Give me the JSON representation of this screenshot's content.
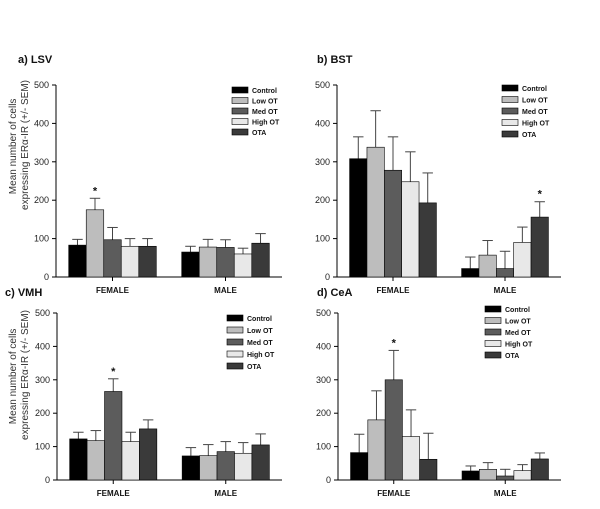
{
  "figure": {
    "ylabel_line1": "Mean number of cells",
    "ylabel_line2": "expressing ERα-IR (+/- SEM)"
  },
  "colors": {
    "Control": "#000000",
    "Low OT": "#bdbdbd",
    "Med OT": "#5c5c5c",
    "High OT": "#e8e8e8",
    "OTA": "#3a3a3a"
  },
  "chart_data": [
    {
      "type": "bar",
      "title": "a) LSV",
      "categories": [
        "FEMALE",
        "MALE"
      ],
      "ylim": [
        0,
        500
      ],
      "yticks": [
        0,
        100,
        200,
        300,
        400,
        500
      ],
      "legend": "top-right",
      "series": [
        {
          "name": "Control",
          "values": [
            83,
            65
          ],
          "errors": [
            15,
            15
          ]
        },
        {
          "name": "Low OT",
          "values": [
            175,
            78
          ],
          "errors": [
            30,
            20
          ]
        },
        {
          "name": "Med OT",
          "values": [
            97,
            77
          ],
          "errors": [
            32,
            20
          ]
        },
        {
          "name": "High OT",
          "values": [
            80,
            60
          ],
          "errors": [
            20,
            15
          ]
        },
        {
          "name": "OTA",
          "values": [
            80,
            88
          ],
          "errors": [
            20,
            25
          ]
        }
      ],
      "annotations": [
        {
          "category": "FEMALE",
          "series": "Low OT",
          "text": "*"
        }
      ]
    },
    {
      "type": "bar",
      "title": "b) BST",
      "categories": [
        "FEMALE",
        "MALE"
      ],
      "ylim": [
        0,
        500
      ],
      "yticks": [
        0,
        100,
        200,
        300,
        400,
        500
      ],
      "legend": "top-right",
      "series": [
        {
          "name": "Control",
          "values": [
            308,
            22
          ],
          "errors": [
            57,
            30
          ]
        },
        {
          "name": "Low OT",
          "values": [
            338,
            57
          ],
          "errors": [
            95,
            38
          ]
        },
        {
          "name": "Med OT",
          "values": [
            278,
            22
          ],
          "errors": [
            87,
            45
          ]
        },
        {
          "name": "High OT",
          "values": [
            248,
            90
          ],
          "errors": [
            78,
            40
          ]
        },
        {
          "name": "OTA",
          "values": [
            193,
            156
          ],
          "errors": [
            78,
            40
          ]
        }
      ],
      "annotations": [
        {
          "category": "MALE",
          "series": "OTA",
          "text": "*"
        }
      ]
    },
    {
      "type": "bar",
      "title": "c) VMH",
      "categories": [
        "FEMALE",
        "MALE"
      ],
      "ylim": [
        0,
        500
      ],
      "yticks": [
        0,
        100,
        200,
        300,
        400,
        500
      ],
      "legend": "top-right",
      "series": [
        {
          "name": "Control",
          "values": [
            123,
            72
          ],
          "errors": [
            20,
            25
          ]
        },
        {
          "name": "Low OT",
          "values": [
            118,
            73
          ],
          "errors": [
            30,
            33
          ]
        },
        {
          "name": "Med OT",
          "values": [
            265,
            85
          ],
          "errors": [
            38,
            30
          ]
        },
        {
          "name": "High OT",
          "values": [
            115,
            80
          ],
          "errors": [
            28,
            32
          ]
        },
        {
          "name": "OTA",
          "values": [
            153,
            105
          ],
          "errors": [
            27,
            33
          ]
        }
      ],
      "annotations": [
        {
          "category": "FEMALE",
          "series": "Med OT",
          "text": "*"
        }
      ]
    },
    {
      "type": "bar",
      "title": "d) CeA",
      "categories": [
        "FEMALE",
        "MALE"
      ],
      "ylim": [
        0,
        500
      ],
      "yticks": [
        0,
        100,
        200,
        300,
        400,
        500
      ],
      "legend": "top-right",
      "series": [
        {
          "name": "Control",
          "values": [
            82,
            27
          ],
          "errors": [
            55,
            15
          ]
        },
        {
          "name": "Low OT",
          "values": [
            180,
            32
          ],
          "errors": [
            87,
            20
          ]
        },
        {
          "name": "Med OT",
          "values": [
            300,
            12
          ],
          "errors": [
            88,
            20
          ]
        },
        {
          "name": "High OT",
          "values": [
            130,
            28
          ],
          "errors": [
            80,
            18
          ]
        },
        {
          "name": "OTA",
          "values": [
            62,
            63
          ],
          "errors": [
            78,
            18
          ]
        }
      ],
      "annotations": [
        {
          "category": "FEMALE",
          "series": "Med OT",
          "text": "*"
        }
      ]
    }
  ]
}
